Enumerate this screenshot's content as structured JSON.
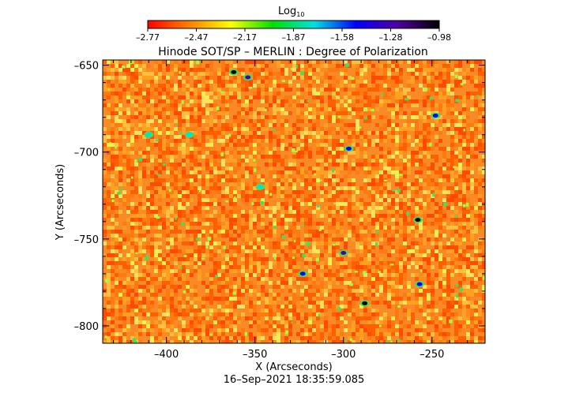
{
  "chart_data": {
    "type": "heatmap",
    "title": "Hinode SOT/SP – MERLIN : Degree of Polarization",
    "colorbar": {
      "label_base": "Log",
      "label_sub": "10",
      "ticks": [
        "–2.77",
        "–2.47",
        "–2.17",
        "–1.87",
        "–1.58",
        "–1.28",
        "–0.98"
      ],
      "range": [
        -2.77,
        -0.98
      ],
      "colors": [
        "#ff0000",
        "#ff8000",
        "#ffff00",
        "#00e000",
        "#00e0e0",
        "#0000ff",
        "#5000a0",
        "#000000"
      ]
    },
    "xlabel": "X (Arcseconds)",
    "ylabel": "Y (Arcseconds)",
    "xlim": [
      -436,
      -220
    ],
    "ylim": [
      -810,
      -647
    ],
    "xticks": [
      {
        "value": -400,
        "label": "–400"
      },
      {
        "value": -350,
        "label": "–350"
      },
      {
        "value": -300,
        "label": "–300"
      },
      {
        "value": -250,
        "label": "–250"
      }
    ],
    "yticks": [
      {
        "value": -650,
        "label": "–650"
      },
      {
        "value": -700,
        "label": "–700"
      },
      {
        "value": -750,
        "label": "–750"
      },
      {
        "value": -800,
        "label": "–800"
      }
    ],
    "field_description": "dominant log10 polarization approx -2.6 (orange) with yellow/green patches and small blue/black spots",
    "features": [
      {
        "x": -362,
        "y": -654,
        "level": -1.1
      },
      {
        "x": -354,
        "y": -657,
        "level": -1.3
      },
      {
        "x": -258,
        "y": -739,
        "level": -0.98
      },
      {
        "x": -288,
        "y": -787,
        "level": -1.0
      },
      {
        "x": -300,
        "y": -758,
        "level": -1.25
      },
      {
        "x": -257,
        "y": -776,
        "level": -1.4
      },
      {
        "x": -297,
        "y": -698,
        "level": -1.55
      },
      {
        "x": -323,
        "y": -770,
        "level": -1.6
      },
      {
        "x": -410,
        "y": -690,
        "level": -1.7
      },
      {
        "x": -387,
        "y": -690,
        "level": -1.75
      },
      {
        "x": -248,
        "y": -679,
        "level": -1.6
      },
      {
        "x": -347,
        "y": -720,
        "level": -1.8
      }
    ],
    "footer": "16–Sep–2021 18:35:59.085"
  }
}
